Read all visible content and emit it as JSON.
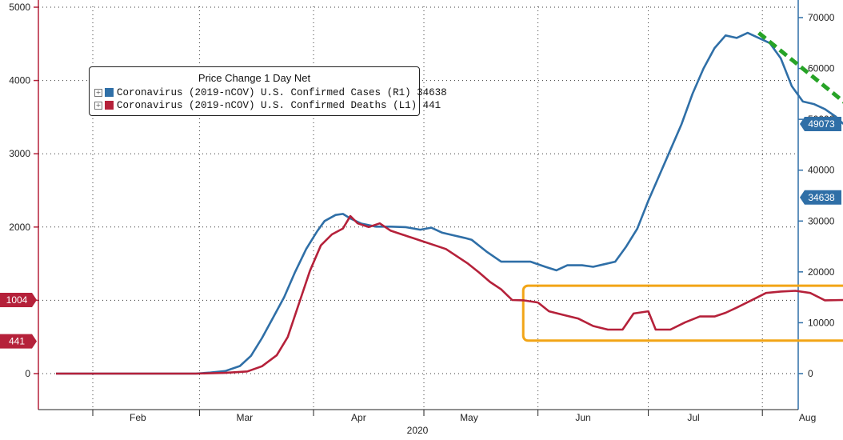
{
  "chart_data": {
    "type": "line",
    "title": "Price Change 1 Day Net",
    "x_group_label": "2020",
    "x_ticks": [
      "Feb",
      "Mar",
      "Apr",
      "May",
      "Jun",
      "Jul",
      "Aug"
    ],
    "left_axis": {
      "ticks": [
        0,
        1000,
        2000,
        3000,
        4000,
        5000
      ],
      "ylim": [
        0,
        5000
      ]
    },
    "right_axis": {
      "ticks": [
        0,
        10000,
        20000,
        30000,
        40000,
        50000,
        60000,
        70000
      ],
      "ylim": [
        0,
        72000
      ]
    },
    "grid": true,
    "legend_position": "top-left",
    "series": [
      {
        "name": "Coronavirus (2019-nCOV) U.S. Confirmed Cases",
        "axis_tag": "(R1)",
        "last_value": "34638",
        "color": "#2f6fa7",
        "axis": "right",
        "points": [
          [
            "2020-01-22",
            0
          ],
          [
            "2020-02-01",
            0
          ],
          [
            "2020-02-15",
            0
          ],
          [
            "2020-02-29",
            0
          ],
          [
            "2020-03-04",
            200
          ],
          [
            "2020-03-08",
            500
          ],
          [
            "2020-03-12",
            1500
          ],
          [
            "2020-03-15",
            3500
          ],
          [
            "2020-03-18",
            7000
          ],
          [
            "2020-03-21",
            11000
          ],
          [
            "2020-03-24",
            15000
          ],
          [
            "2020-03-27",
            20000
          ],
          [
            "2020-03-30",
            24500
          ],
          [
            "2020-04-02",
            28000
          ],
          [
            "2020-04-04",
            30000
          ],
          [
            "2020-04-07",
            31200
          ],
          [
            "2020-04-09",
            31400
          ],
          [
            "2020-04-11",
            30500
          ],
          [
            "2020-04-14",
            29500
          ],
          [
            "2020-04-18",
            28900
          ],
          [
            "2020-04-22",
            28900
          ],
          [
            "2020-04-26",
            28800
          ],
          [
            "2020-04-30",
            28300
          ],
          [
            "2020-05-03",
            28700
          ],
          [
            "2020-05-06",
            27700
          ],
          [
            "2020-05-09",
            27200
          ],
          [
            "2020-05-12",
            26700
          ],
          [
            "2020-05-14",
            26300
          ],
          [
            "2020-05-18",
            24000
          ],
          [
            "2020-05-22",
            22000
          ],
          [
            "2020-05-26",
            22000
          ],
          [
            "2020-05-30",
            22000
          ],
          [
            "2020-06-03",
            21000
          ],
          [
            "2020-06-06",
            20300
          ],
          [
            "2020-06-09",
            21300
          ],
          [
            "2020-06-13",
            21300
          ],
          [
            "2020-06-16",
            21000
          ],
          [
            "2020-06-19",
            21500
          ],
          [
            "2020-06-22",
            22000
          ],
          [
            "2020-06-25",
            25000
          ],
          [
            "2020-06-28",
            28500
          ],
          [
            "2020-07-01",
            34000
          ],
          [
            "2020-07-04",
            39000
          ],
          [
            "2020-07-07",
            44000
          ],
          [
            "2020-07-10",
            49000
          ],
          [
            "2020-07-13",
            55000
          ],
          [
            "2020-07-16",
            60000
          ],
          [
            "2020-07-19",
            64000
          ],
          [
            "2020-07-22",
            66500
          ],
          [
            "2020-07-25",
            66000
          ],
          [
            "2020-07-28",
            67000
          ],
          [
            "2020-07-31",
            66000
          ],
          [
            "2020-08-03",
            65000
          ],
          [
            "2020-08-06",
            62000
          ],
          [
            "2020-08-09",
            56500
          ],
          [
            "2020-08-12",
            53500
          ],
          [
            "2020-08-15",
            53000
          ],
          [
            "2020-08-18",
            52000
          ],
          [
            "2020-08-21",
            50500
          ],
          [
            "2020-08-23",
            49073
          ]
        ]
      },
      {
        "name": "Coronavirus (2019-nCOV) U.S. Confirmed Deaths",
        "axis_tag": "(L1)",
        "last_value": "441",
        "color": "#b5213a",
        "axis": "left",
        "points": [
          [
            "2020-01-22",
            0
          ],
          [
            "2020-02-01",
            0
          ],
          [
            "2020-02-15",
            0
          ],
          [
            "2020-02-29",
            0
          ],
          [
            "2020-03-08",
            10
          ],
          [
            "2020-03-14",
            30
          ],
          [
            "2020-03-18",
            100
          ],
          [
            "2020-03-22",
            250
          ],
          [
            "2020-03-25",
            500
          ],
          [
            "2020-03-28",
            950
          ],
          [
            "2020-03-31",
            1400
          ],
          [
            "2020-04-03",
            1750
          ],
          [
            "2020-04-06",
            1900
          ],
          [
            "2020-04-09",
            1980
          ],
          [
            "2020-04-11",
            2150
          ],
          [
            "2020-04-13",
            2050
          ],
          [
            "2020-04-16",
            2000
          ],
          [
            "2020-04-19",
            2050
          ],
          [
            "2020-04-22",
            1950
          ],
          [
            "2020-04-25",
            1900
          ],
          [
            "2020-04-28",
            1850
          ],
          [
            "2020-05-01",
            1800
          ],
          [
            "2020-05-04",
            1750
          ],
          [
            "2020-05-07",
            1700
          ],
          [
            "2020-05-10",
            1600
          ],
          [
            "2020-05-13",
            1500
          ],
          [
            "2020-05-16",
            1380
          ],
          [
            "2020-05-19",
            1250
          ],
          [
            "2020-05-22",
            1150
          ],
          [
            "2020-05-25",
            1004
          ],
          [
            "2020-05-28",
            1000
          ],
          [
            "2020-06-01",
            970
          ],
          [
            "2020-06-04",
            850
          ],
          [
            "2020-06-08",
            800
          ],
          [
            "2020-06-12",
            750
          ],
          [
            "2020-06-16",
            650
          ],
          [
            "2020-06-20",
            600
          ],
          [
            "2020-06-24",
            600
          ],
          [
            "2020-06-27",
            820
          ],
          [
            "2020-07-01",
            850
          ],
          [
            "2020-07-03",
            600
          ],
          [
            "2020-07-07",
            600
          ],
          [
            "2020-07-11",
            700
          ],
          [
            "2020-07-15",
            780
          ],
          [
            "2020-07-19",
            780
          ],
          [
            "2020-07-22",
            830
          ],
          [
            "2020-07-25",
            900
          ],
          [
            "2020-07-29",
            1000
          ],
          [
            "2020-08-02",
            1100
          ],
          [
            "2020-08-06",
            1120
          ],
          [
            "2020-08-10",
            1130
          ],
          [
            "2020-08-14",
            1100
          ],
          [
            "2020-08-18",
            1000
          ],
          [
            "2020-08-23",
            1004
          ]
        ]
      }
    ],
    "left_axis_badges": [
      "1004",
      "441"
    ],
    "right_axis_badges": [
      "49073",
      "34638"
    ],
    "annotations": [
      {
        "kind": "highlight-box",
        "color": "#f2a516"
      },
      {
        "kind": "trend-arrow",
        "color": "#27a327",
        "direction": "down"
      }
    ]
  }
}
